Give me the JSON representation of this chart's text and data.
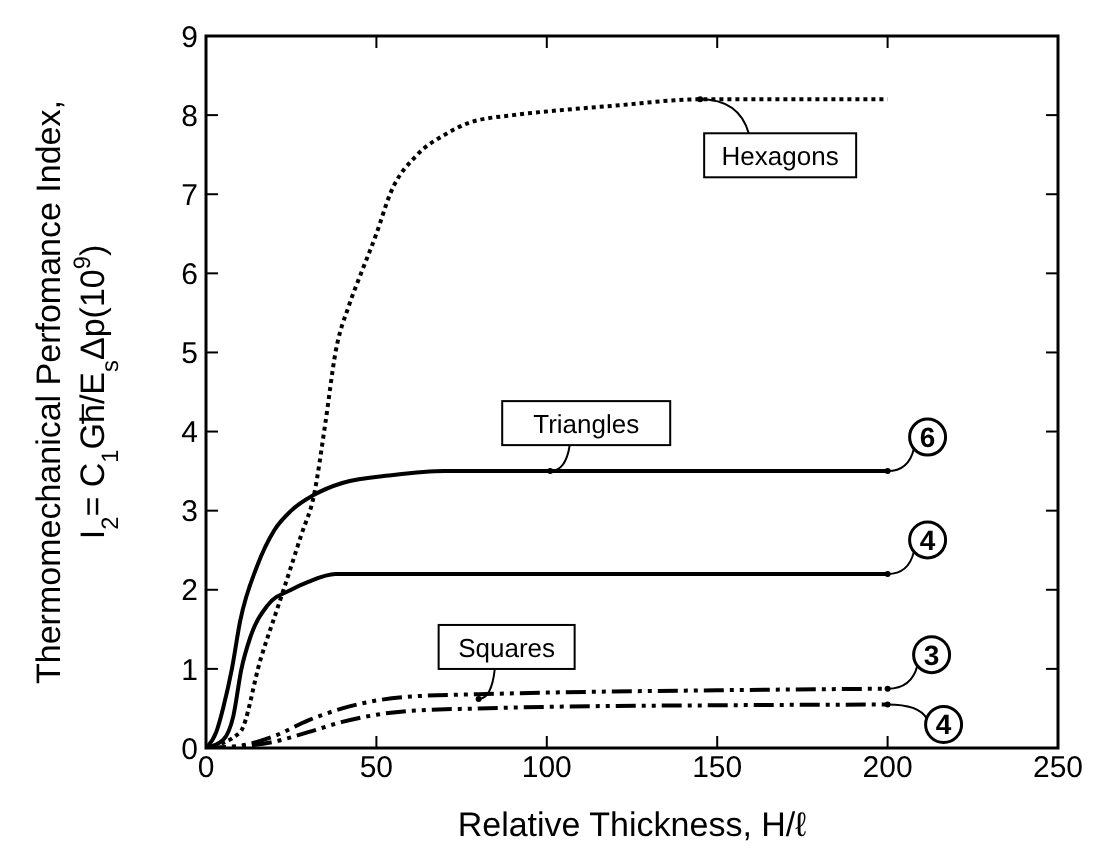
{
  "chart_data": {
    "type": "line",
    "xlabel": "Relative Thickness,  H/ℓ",
    "ylabel": "Thermomechanical Perfomance Index,\nI$_{2}$= C$_{1}$Gh̅/E$_{s}$Δp(10$^{9}$)",
    "xlim": [
      0,
      250
    ],
    "xticks": [
      0,
      50,
      100,
      150,
      200,
      250
    ],
    "ylim": [
      0,
      9
    ],
    "yticks": [
      0,
      1,
      2,
      3,
      4,
      5,
      6,
      7,
      8,
      9
    ],
    "grid": false,
    "marker": "none",
    "series": [
      {
        "color": "#000000",
        "line_style": "dotted",
        "x": [
          0,
          10,
          16,
          22,
          28,
          31.7,
          35,
          38,
          42,
          45.5,
          50,
          54,
          62,
          70,
          77,
          90,
          101,
          120,
          145,
          170,
          200
        ],
        "values": [
          0,
          0.2,
          1.12,
          1.9,
          2.7,
          3.2,
          4.1,
          5,
          5.6,
          6,
          6.5,
          7,
          7.5,
          7.75,
          7.9,
          8.0,
          8.05,
          8.12,
          8.2,
          8.2,
          8.2
        ]
      },
      {
        "color": "#000000",
        "line_style": "solid",
        "x": [
          0,
          3,
          5,
          7.6,
          10,
          15,
          20,
          25,
          31.7,
          40,
          55,
          70,
          100,
          150,
          200
        ],
        "values": [
          0,
          0.2,
          0.5,
          1,
          1.6,
          2.3,
          2.75,
          3.0,
          3.2,
          3.35,
          3.45,
          3.5,
          3.5,
          3.5,
          3.5
        ]
      },
      {
        "color": "#000000",
        "line_style": "solid",
        "x": [
          0,
          5,
          8,
          10.4,
          13,
          18,
          25,
          30,
          38,
          50,
          100,
          150,
          200
        ],
        "values": [
          0,
          0.1,
          0.4,
          1,
          1.4,
          1.8,
          2.0,
          2.1,
          2.2,
          2.2,
          2.2,
          2.2,
          2.2
        ]
      },
      {
        "color": "#000000",
        "line_style": "dashed",
        "x": [
          0,
          10,
          20,
          30,
          40,
          50,
          60,
          80,
          100,
          150,
          200
        ],
        "values": [
          0,
          0.03,
          0.15,
          0.35,
          0.5,
          0.6,
          0.65,
          0.68,
          0.7,
          0.73,
          0.75
        ]
      },
      {
        "color": "#000000",
        "line_style": "dashed",
        "x": [
          0,
          10,
          20,
          30,
          40,
          50,
          60,
          80,
          100,
          150,
          200
        ],
        "values": [
          0,
          0.02,
          0.08,
          0.2,
          0.33,
          0.42,
          0.47,
          0.5,
          0.52,
          0.54,
          0.55
        ]
      }
    ],
    "annotations": [
      {
        "text": "Hexagons",
        "x": 145,
        "y": 8.2
      },
      {
        "text": "Triangles",
        "x": 101,
        "y": 3.5
      },
      {
        "text": "Squares",
        "x": 80,
        "y": 0.62
      },
      {
        "text": "6",
        "x": 200,
        "y": 3.5
      },
      {
        "text": "4",
        "x": 200,
        "y": 2.2
      },
      {
        "text": "3",
        "x": 200,
        "y": 0.75
      },
      {
        "text": "4",
        "x": 200,
        "y": 0.55
      }
    ]
  }
}
